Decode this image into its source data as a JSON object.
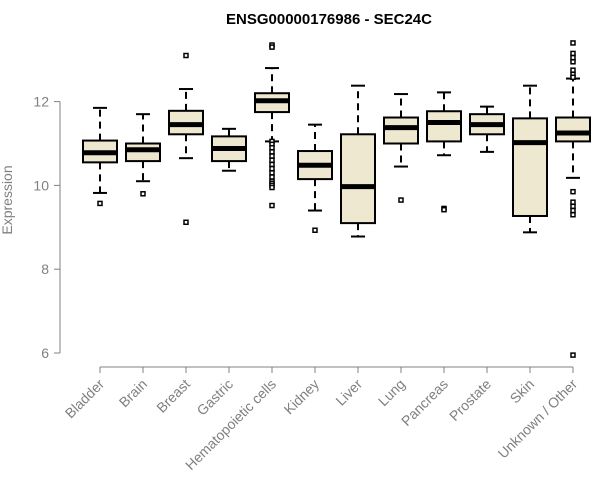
{
  "chart_data": {
    "type": "boxplot",
    "title": "ENSG00000176986 - SEC24C",
    "ylabel": "Expression",
    "xlabel": "",
    "ylim": [
      6,
      13.5
    ],
    "yticks": [
      6,
      8,
      10,
      12
    ],
    "box_fill": "#efe8d0",
    "box_stroke": "#000000",
    "axis_color": "#808080",
    "categories": [
      "Bladder",
      "Brain",
      "Breast",
      "Gastric",
      "Hematopoietic cells",
      "Kidney",
      "Liver",
      "Lung",
      "Pancreas",
      "Prostate",
      "Skin",
      "Unknown / Other"
    ],
    "boxes": [
      {
        "q1": 10.55,
        "median": 10.78,
        "q3": 11.07,
        "whisker_low": 9.82,
        "whisker_high": 11.85,
        "outliers": [
          9.57
        ]
      },
      {
        "q1": 10.58,
        "median": 10.85,
        "q3": 11.0,
        "whisker_low": 10.1,
        "whisker_high": 11.7,
        "outliers": [
          9.8
        ]
      },
      {
        "q1": 11.22,
        "median": 11.45,
        "q3": 11.78,
        "whisker_low": 10.65,
        "whisker_high": 12.3,
        "outliers": [
          13.1,
          9.12
        ]
      },
      {
        "q1": 10.58,
        "median": 10.88,
        "q3": 11.17,
        "whisker_low": 10.35,
        "whisker_high": 11.35,
        "outliers": []
      },
      {
        "q1": 11.75,
        "median": 12.02,
        "q3": 12.2,
        "whisker_low": 11.05,
        "whisker_high": 12.8,
        "outliers": [
          13.35,
          13.3,
          11.05,
          10.98,
          10.9,
          10.8,
          10.7,
          10.6,
          10.5,
          10.4,
          10.3,
          10.2,
          10.1,
          10.05,
          10.0,
          9.95,
          9.52
        ]
      },
      {
        "q1": 10.15,
        "median": 10.48,
        "q3": 10.82,
        "whisker_low": 9.4,
        "whisker_high": 11.45,
        "outliers": [
          8.93
        ]
      },
      {
        "q1": 9.1,
        "median": 9.97,
        "q3": 11.22,
        "whisker_low": 8.78,
        "whisker_high": 12.38,
        "outliers": []
      },
      {
        "q1": 11.0,
        "median": 11.38,
        "q3": 11.62,
        "whisker_low": 10.45,
        "whisker_high": 12.18,
        "outliers": [
          9.65
        ]
      },
      {
        "q1": 11.05,
        "median": 11.5,
        "q3": 11.77,
        "whisker_low": 10.72,
        "whisker_high": 12.22,
        "outliers": [
          9.45,
          9.42
        ]
      },
      {
        "q1": 11.22,
        "median": 11.45,
        "q3": 11.7,
        "whisker_low": 10.8,
        "whisker_high": 11.88,
        "outliers": []
      },
      {
        "q1": 9.27,
        "median": 11.02,
        "q3": 11.6,
        "whisker_low": 8.88,
        "whisker_high": 12.38,
        "outliers": []
      },
      {
        "q1": 11.05,
        "median": 11.25,
        "q3": 11.62,
        "whisker_low": 10.18,
        "whisker_high": 12.55,
        "outliers": [
          13.4,
          13.15,
          13.05,
          12.95,
          12.75,
          12.65,
          12.58,
          9.85,
          9.6,
          9.5,
          9.4,
          9.3,
          5.95
        ]
      }
    ]
  }
}
